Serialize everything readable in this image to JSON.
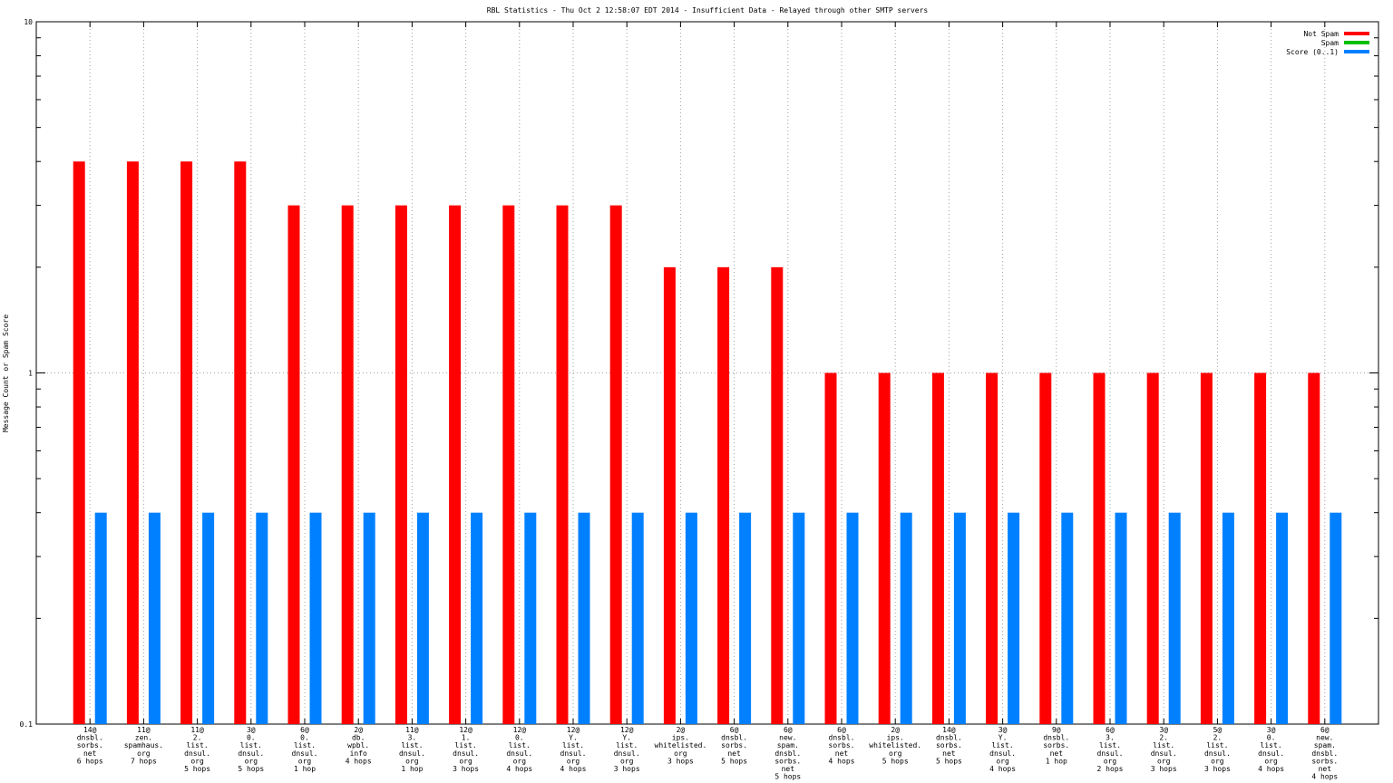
{
  "chart_data": {
    "type": "bar",
    "title": "RBL Statistics - Thu Oct  2 12:58:07 EDT 2014 - Insufficient Data - Relayed through other SMTP servers",
    "xlabel": "",
    "ylabel": "Message Count or Spam Score",
    "y_scale": "log",
    "ylim": [
      0.1,
      10
    ],
    "y_ticks": [
      "0.1",
      "1",
      "10"
    ],
    "grid": true,
    "legend_position": "top-right",
    "categories": [
      [
        "14@",
        "dnsbl.",
        "sorbs.",
        "net",
        "6 hops"
      ],
      [
        "11@",
        "zen.",
        "spamhaus.",
        "org",
        "7 hops"
      ],
      [
        "11@",
        "2.",
        "list.",
        "dnsul.",
        "org",
        "5 hops"
      ],
      [
        "3@",
        "0.",
        "list.",
        "dnsul.",
        "org",
        "5 hops"
      ],
      [
        "6@",
        "0.",
        "list.",
        "dnsul.",
        "org",
        "1 hop"
      ],
      [
        "2@",
        "db.",
        "wpbl.",
        "info",
        "4 hops"
      ],
      [
        "11@",
        "3.",
        "list.",
        "dnsul.",
        "org",
        "1 hop"
      ],
      [
        "12@",
        "1.",
        "list.",
        "dnsul.",
        "org",
        "3 hops"
      ],
      [
        "12@",
        "0.",
        "list.",
        "dnsul.",
        "org",
        "4 hops"
      ],
      [
        "12@",
        "Y.",
        "list.",
        "dnsul.",
        "org",
        "4 hops"
      ],
      [
        "12@",
        "Y.",
        "list.",
        "dnsul.",
        "org",
        "3 hops"
      ],
      [
        "2@",
        "ips.",
        "whitelisted.",
        "org",
        "3 hops"
      ],
      [
        "6@",
        "dnsbl.",
        "sorbs.",
        "net",
        "5 hops"
      ],
      [
        "6@",
        "new.",
        "spam.",
        "dnsbl.",
        "sorbs.",
        "net",
        "5 hops"
      ],
      [
        "6@",
        "dnsbl.",
        "sorbs.",
        "net",
        "4 hops"
      ],
      [
        "2@",
        "ips.",
        "whitelisted.",
        "org",
        "5 hops"
      ],
      [
        "14@",
        "dnsbl.",
        "sorbs.",
        "net",
        "5 hops"
      ],
      [
        "3@",
        "Y.",
        "list.",
        "dnsul.",
        "org",
        "4 hops"
      ],
      [
        "9@",
        "dnsbl.",
        "sorbs.",
        "net",
        "1 hop"
      ],
      [
        "6@",
        "3.",
        "list.",
        "dnsul.",
        "org",
        "2 hops"
      ],
      [
        "3@",
        "2.",
        "list.",
        "dnsul.",
        "org",
        "3 hops"
      ],
      [
        "5@",
        "2.",
        "list.",
        "dnsul.",
        "org",
        "3 hops"
      ],
      [
        "3@",
        "0.",
        "list.",
        "dnsul.",
        "org",
        "4 hops"
      ],
      [
        "6@",
        "new.",
        "spam.",
        "dnsbl.",
        "sorbs.",
        "net",
        "4 hops"
      ]
    ],
    "series": [
      {
        "name": "Not Spam",
        "color": "#ff0000",
        "values": [
          4,
          4,
          4,
          4,
          3,
          3,
          3,
          3,
          3,
          3,
          3,
          2,
          2,
          2,
          1,
          1,
          1,
          1,
          1,
          1,
          1,
          1,
          1,
          1
        ]
      },
      {
        "name": "Spam",
        "color": "#00c000",
        "values": [
          0,
          0,
          0,
          0,
          0,
          0,
          0,
          0,
          0,
          0,
          0,
          0,
          0,
          0,
          0,
          0,
          0,
          0,
          0,
          0,
          0,
          0,
          0,
          0
        ]
      },
      {
        "name": "Score (0..1)",
        "color": "#0080ff",
        "values": [
          0.4,
          0.4,
          0.4,
          0.4,
          0.4,
          0.4,
          0.4,
          0.4,
          0.4,
          0.4,
          0.4,
          0.4,
          0.4,
          0.4,
          0.4,
          0.4,
          0.4,
          0.4,
          0.4,
          0.4,
          0.4,
          0.4,
          0.4,
          0.4
        ]
      }
    ]
  }
}
